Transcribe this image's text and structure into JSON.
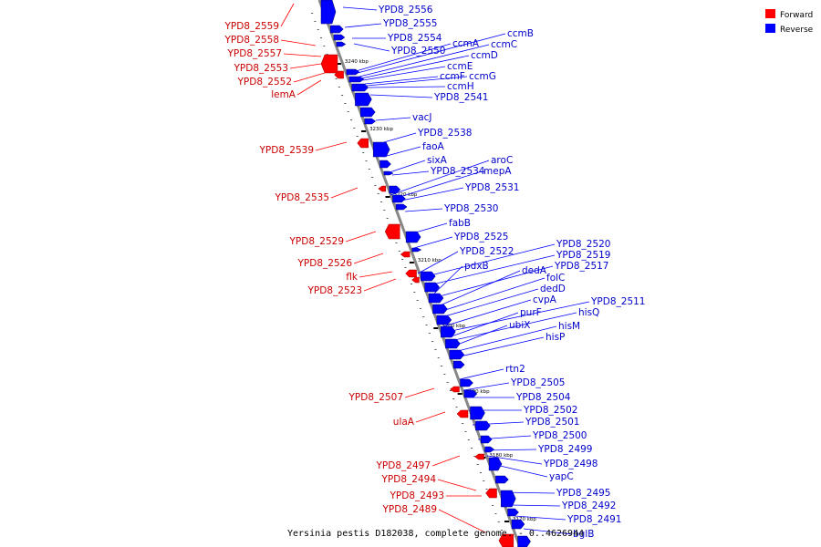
{
  "caption": "Yersinia pestis D182038, complete genome. - 0..4626944",
  "legend": [
    {
      "label": "Forward",
      "color": "#ff0000"
    },
    {
      "label": "Reverse",
      "color": "#0000ff"
    }
  ],
  "colors": {
    "forward": "#ff0000",
    "reverse": "#0000ff",
    "backbone": "#888888"
  },
  "ticks": [
    "3240 kbp",
    "3230 kbp",
    "3220 kbp",
    "3210 kbp",
    "3200 kbp",
    "3190 kbp",
    "3180 kbp",
    "3170 kbp"
  ],
  "forward_labels": [
    "YPD8_2559",
    "YPD8_2558",
    "YPD8_2557",
    "YPD8_2553",
    "YPD8_2552",
    "lemA",
    "YPD8_2539",
    "YPD8_2535",
    "YPD8_2529",
    "YPD8_2526",
    "flk",
    "YPD8_2523",
    "YPD8_2507",
    "ulaA",
    "YPD8_2497",
    "YPD8_2494",
    "YPD8_2493",
    "YPD8_2489"
  ],
  "reverse_labels": [
    "YPD8_2556",
    "YPD8_2555",
    "YPD8_2554",
    "YPD8_2550",
    "ccmA",
    "ccmB",
    "ccmC",
    "ccmD",
    "ccmE",
    "ccmF",
    "ccmG",
    "ccmH",
    "YPD8_2541",
    "vacJ",
    "YPD8_2538",
    "faoA",
    "sixA",
    "aroC",
    "YPD8_2534",
    "mepA",
    "YPD8_2531",
    "YPD8_2530",
    "fabB",
    "YPD8_2525",
    "YPD8_2522",
    "YPD8_2520",
    "YPD8_2519",
    "pdxB",
    "YPD8_2517",
    "dedA",
    "folC",
    "dedD",
    "cvpA",
    "YPD8_2511",
    "purF",
    "hisQ",
    "ubiX",
    "hisM",
    "hisP",
    "rtn2",
    "YPD8_2505",
    "YPD8_2504",
    "YPD8_2502",
    "YPD8_2501",
    "YPD8_2500",
    "YPD8_2499",
    "YPD8_2498",
    "yapC",
    "YPD8_2495",
    "YPD8_2492",
    "YPD8_2491",
    "bglB"
  ]
}
